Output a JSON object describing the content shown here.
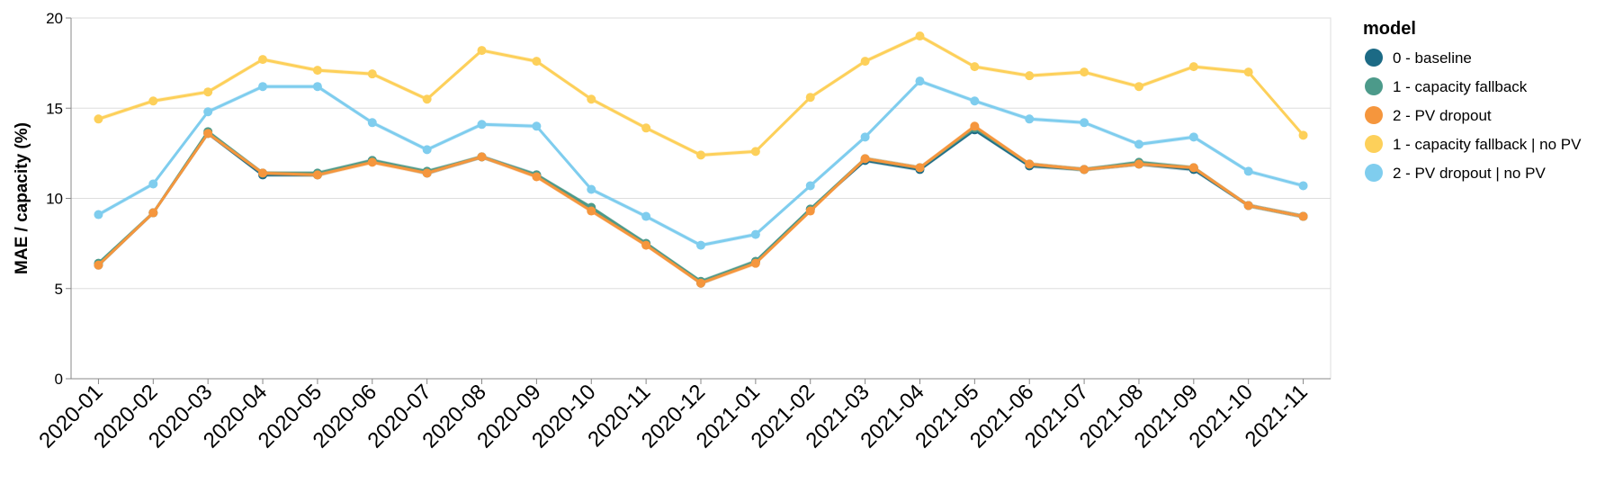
{
  "chart_data": {
    "type": "line",
    "ylabel": "MAE / capacity (%)",
    "xlabel": "",
    "ylim": [
      0,
      20
    ],
    "yticks": [
      0,
      5,
      10,
      15,
      20
    ],
    "grid": true,
    "legend_position": "right",
    "legend_title": "model",
    "categories": [
      "2020-01",
      "2020-02",
      "2020-03",
      "2020-04",
      "2020-05",
      "2020-06",
      "2020-07",
      "2020-08",
      "2020-09",
      "2020-10",
      "2020-11",
      "2020-12",
      "2021-01",
      "2021-02",
      "2021-03",
      "2021-04",
      "2021-05",
      "2021-06",
      "2021-07",
      "2021-08",
      "2021-09",
      "2021-10",
      "2021-11"
    ],
    "series": [
      {
        "name": "0 - baseline",
        "color": "#1c6a85",
        "values": [
          6.3,
          9.2,
          13.6,
          11.3,
          11.3,
          12.1,
          11.4,
          12.3,
          11.3,
          9.4,
          7.5,
          5.3,
          6.5,
          9.4,
          12.1,
          11.6,
          13.8,
          11.8,
          11.6,
          11.9,
          11.6,
          9.6,
          9.0
        ]
      },
      {
        "name": "1 - capacity fallback",
        "color": "#4c9a8a",
        "values": [
          6.4,
          9.2,
          13.7,
          11.4,
          11.4,
          12.1,
          11.5,
          12.3,
          11.3,
          9.5,
          7.5,
          5.4,
          6.5,
          9.4,
          12.2,
          11.7,
          13.9,
          11.9,
          11.6,
          12.0,
          11.7,
          9.6,
          9.0
        ]
      },
      {
        "name": "2 - PV dropout",
        "color": "#f5963d",
        "values": [
          6.3,
          9.2,
          13.6,
          11.4,
          11.3,
          12.0,
          11.4,
          12.3,
          11.2,
          9.3,
          7.4,
          5.3,
          6.4,
          9.3,
          12.2,
          11.7,
          14.0,
          11.9,
          11.6,
          11.9,
          11.7,
          9.6,
          9.0
        ]
      },
      {
        "name": "1 - capacity fallback | no PV",
        "color": "#fdd05a",
        "values": [
          14.4,
          15.4,
          15.9,
          17.7,
          17.1,
          16.9,
          15.5,
          18.2,
          17.6,
          15.5,
          13.9,
          12.4,
          12.6,
          15.6,
          17.6,
          19.0,
          17.3,
          16.8,
          17.0,
          16.2,
          17.3,
          17.0,
          13.5
        ]
      },
      {
        "name": "2 - PV dropout | no PV",
        "color": "#7fcdee",
        "values": [
          9.1,
          10.8,
          14.8,
          16.2,
          16.2,
          14.2,
          12.7,
          14.1,
          14.0,
          10.5,
          9.0,
          7.4,
          8.0,
          10.7,
          13.4,
          16.5,
          15.4,
          14.4,
          14.2,
          13.0,
          13.4,
          11.5,
          10.7
        ]
      }
    ]
  }
}
